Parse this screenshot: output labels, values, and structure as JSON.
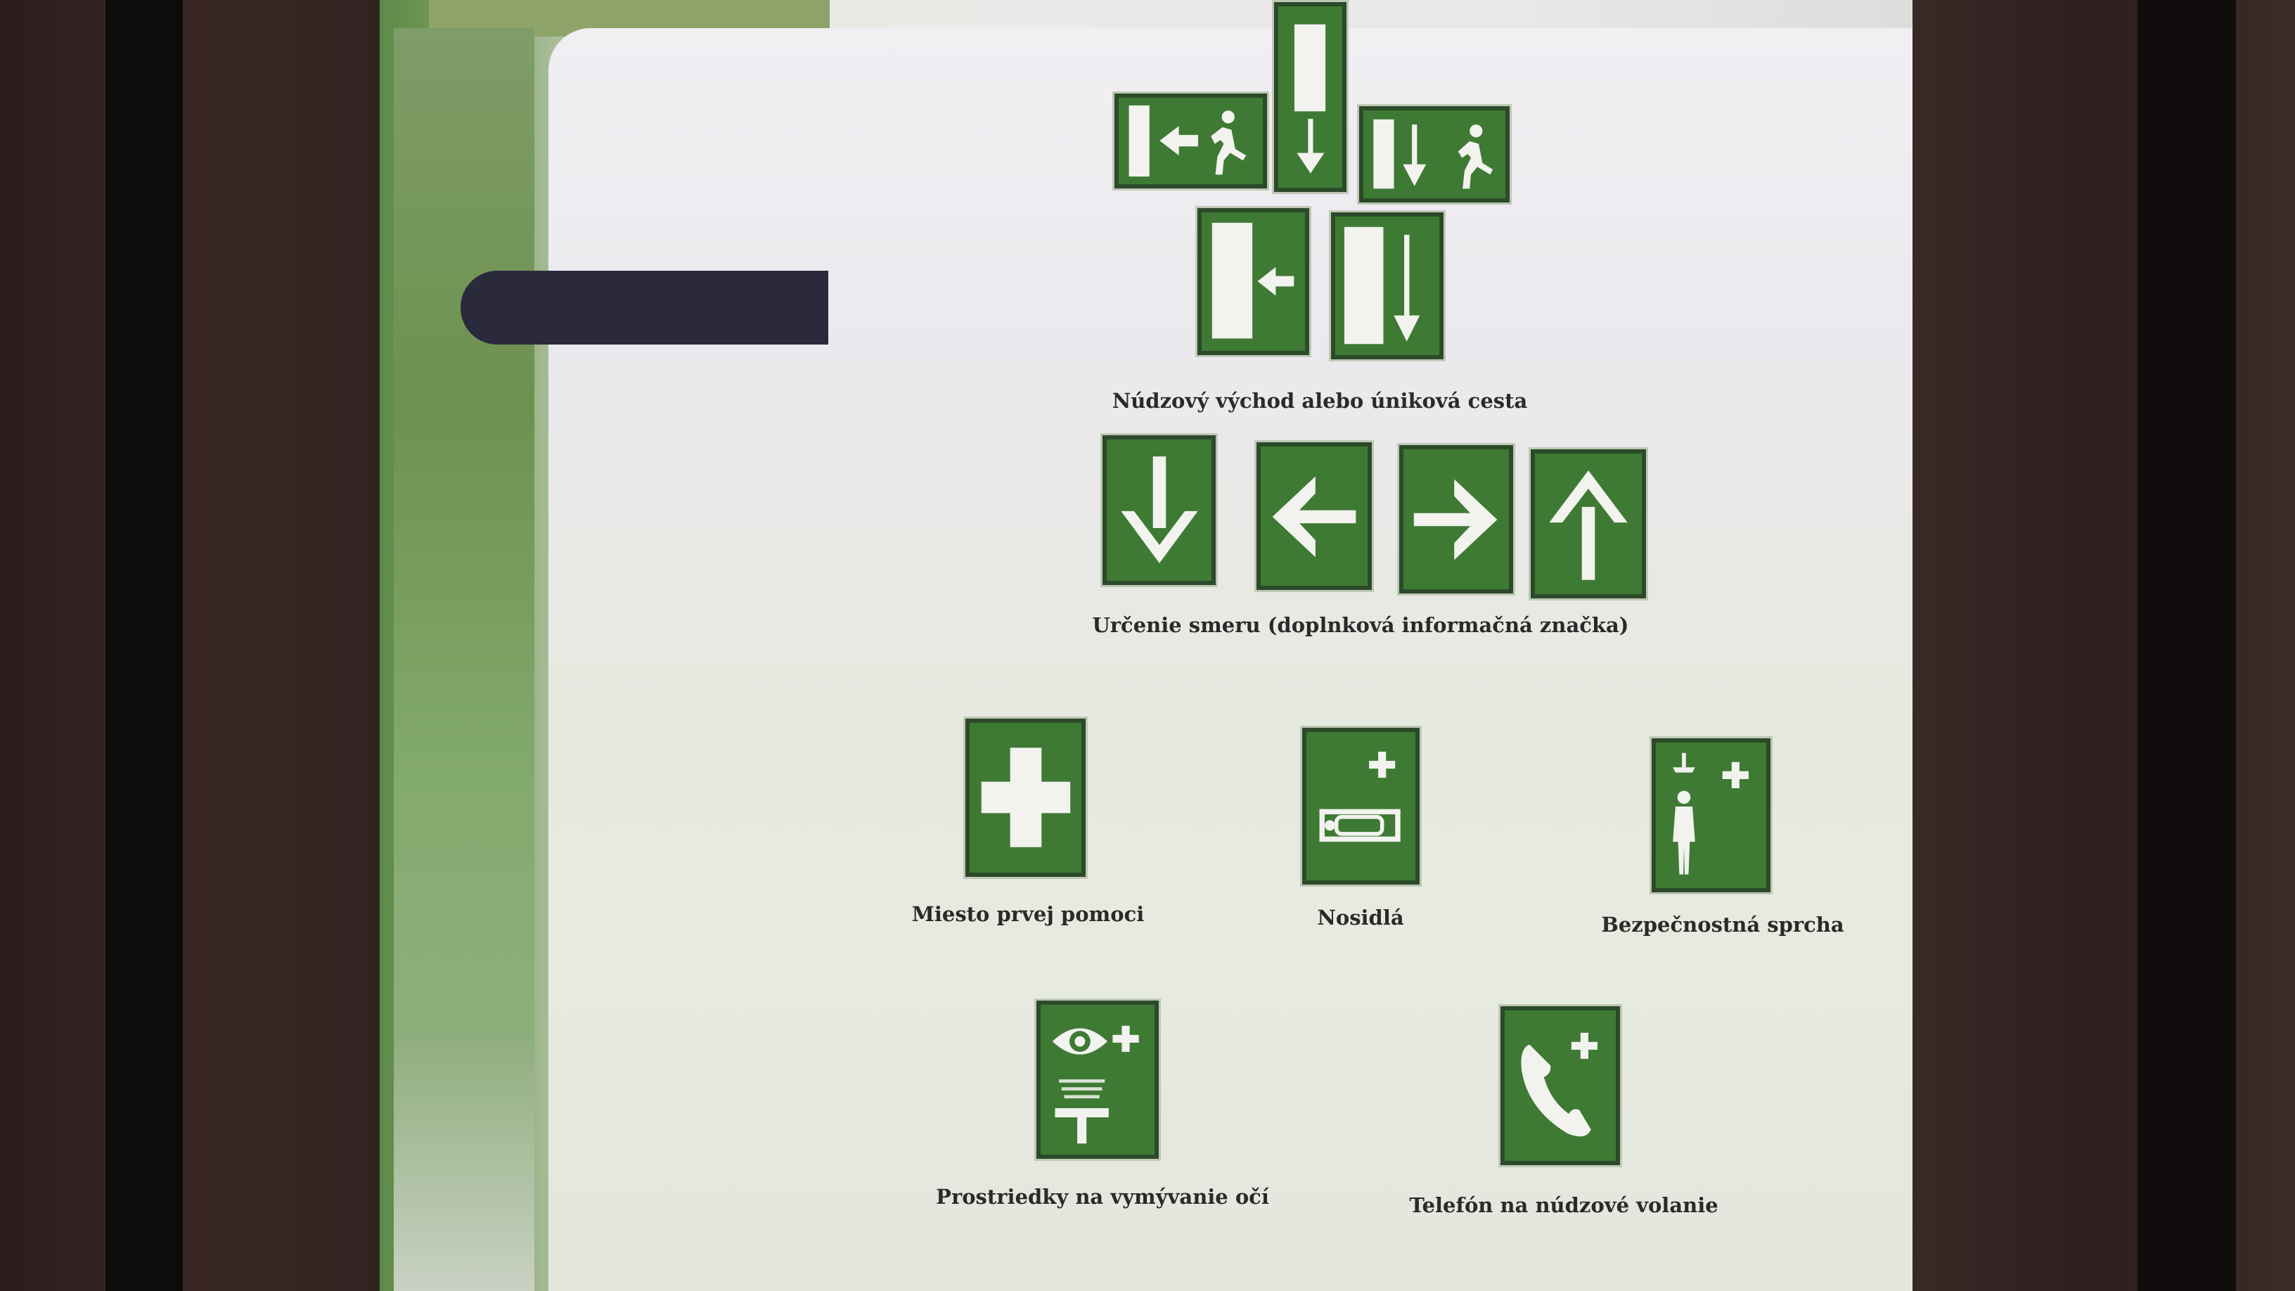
{
  "captions": {
    "emergency_exit": "Núdzový východ alebo úniková cesta",
    "direction": "Určenie smeru (doplnková informačná značka)",
    "first_aid": "Miesto prvej pomoci",
    "stretcher": "Nosidlá",
    "safety_shower": "Bezpečnostná sprcha",
    "eye_wash": "Prostriedky na vymývanie očí",
    "emergency_phone": "Telefón na núdzové volanie"
  },
  "sign_icons": {
    "exit_row_top": [
      "door-arrow-left-running-man-icon",
      "door-arrow-down-icon",
      "door-arrow-down-running-man-icon"
    ],
    "exit_row_bottom": [
      "door-arrow-left-icon",
      "door-arrow-down-icon"
    ],
    "direction_row": [
      "arrow-down-icon",
      "arrow-left-icon",
      "arrow-right-icon",
      "arrow-up-icon"
    ],
    "first_aid": "first-aid-cross-icon",
    "stretcher": "stretcher-icon",
    "safety_shower": "safety-shower-icon",
    "eye_wash": "eye-wash-icon",
    "emergency_phone": "emergency-phone-icon"
  },
  "colors": {
    "sign_green": "#3e7a33",
    "sign_border": "#2c4a2a",
    "symbol_white": "#f2f2ef",
    "caption_text": "#2a2a2a",
    "slide_background": "#eceae8",
    "accent_bar": "#2b2a3c"
  }
}
